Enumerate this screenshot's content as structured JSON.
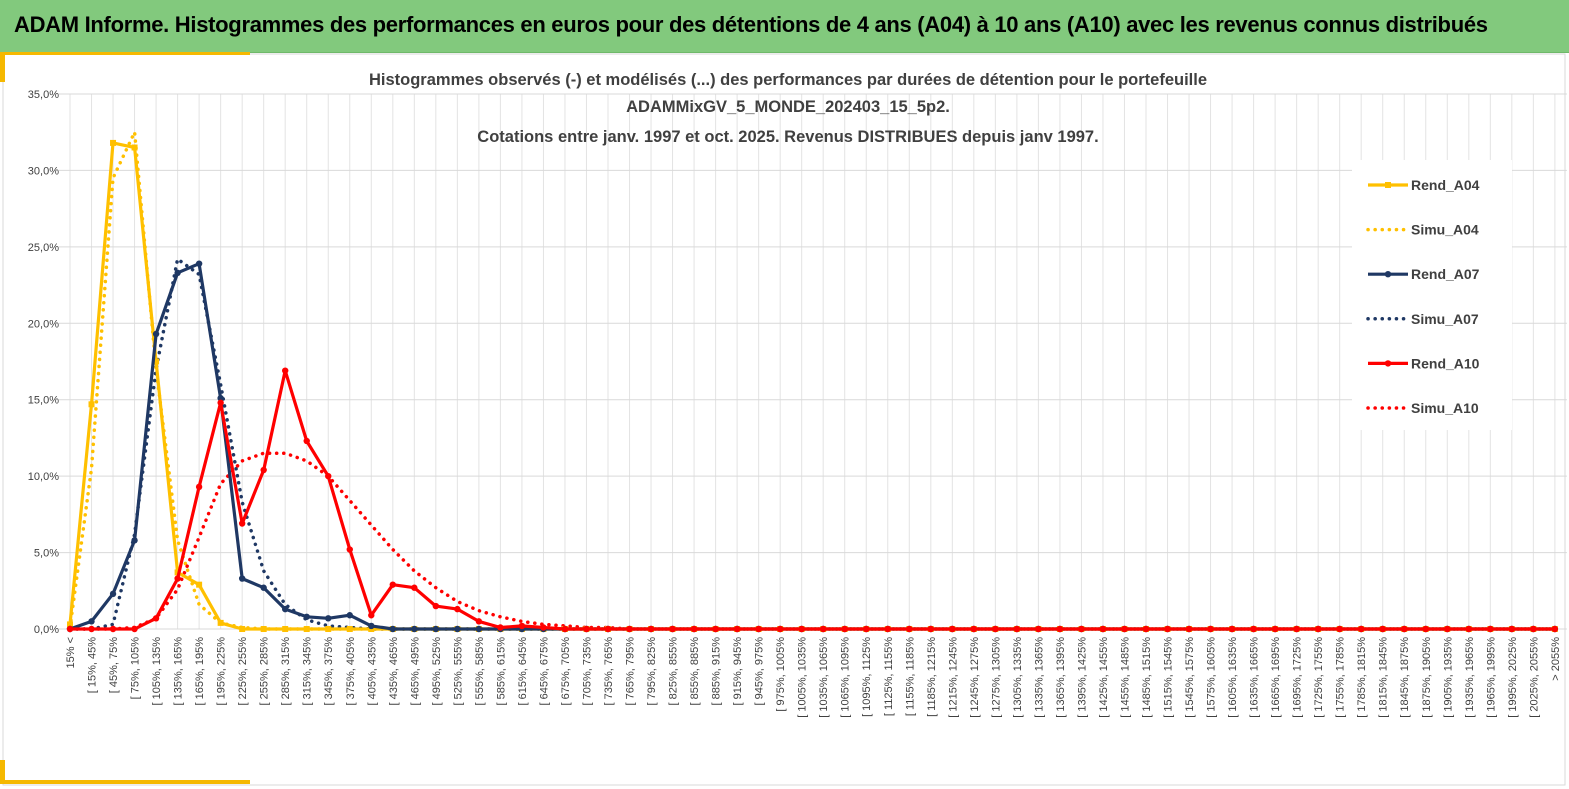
{
  "header": {
    "title": "ADAM Informe. Histogrammes des performances en euros pour des détentions de 4 ans (A04) à 10 ans (A10) avec les revenus connus distribués"
  },
  "colors": {
    "header_bg": "#82c97d",
    "accent_gold": "#f5b800",
    "A04": "#ffc000",
    "A07": "#1f3864",
    "A10": "#ff0000",
    "grid": "#d9d9d9"
  },
  "chart_data": {
    "type": "line",
    "title_lines": [
      "Histogrammes observés (-) et modélisés (...) des performances par durées de détention pour le portefeuille",
      "ADAMMixGV_5_MONDE_202403_15_5p2.",
      "Cotations entre janv. 1997 et oct. 2025. Revenus DISTRIBUES depuis janv 1997."
    ],
    "xlabel": "",
    "ylabel": "",
    "ylim": [
      0,
      35
    ],
    "yticks": [
      "0,0%",
      "5,0%",
      "10,0%",
      "15,0%",
      "20,0%",
      "25,0%",
      "30,0%",
      "35,0%"
    ],
    "grid": true,
    "legend_position": "right",
    "categories": [
      "15% <",
      "[ 15%, 45%",
      "[ 45%, 75%",
      "[ 75%, 105%",
      "[ 105%, 135%",
      "[ 135%, 165%",
      "[ 165%, 195%",
      "[ 195%, 225%",
      "[ 225%, 255%",
      "[ 255%, 285%",
      "[ 285%, 315%",
      "[ 315%, 345%",
      "[ 345%, 375%",
      "[ 375%, 405%",
      "[ 405%, 435%",
      "[ 435%, 465%",
      "[ 465%, 495%",
      "[ 495%, 525%",
      "[ 525%, 555%",
      "[ 555%, 585%",
      "[ 585%, 615%",
      "[ 615%, 645%",
      "[ 645%, 675%",
      "[ 675%, 705%",
      "[ 705%, 735%",
      "[ 735%, 765%",
      "[ 765%, 795%",
      "[ 795%, 825%",
      "[ 825%, 855%",
      "[ 855%, 885%",
      "[ 885%, 915%",
      "[ 915%, 945%",
      "[ 945%, 975%",
      "[ 975%, 1005%",
      "[ 1005%, 1035%",
      "[ 1035%, 1065%",
      "[ 1065%, 1095%",
      "[ 1095%, 1125%",
      "[ 1125%, 1155%",
      "[ 1155%, 1185%",
      "[ 1185%, 1215%",
      "[ 1215%, 1245%",
      "[ 1245%, 1275%",
      "[ 1275%, 1305%",
      "[ 1305%, 1335%",
      "[ 1335%, 1365%",
      "[ 1365%, 1395%",
      "[ 1395%, 1425%",
      "[ 1425%, 1455%",
      "[ 1455%, 1485%",
      "[ 1485%, 1515%",
      "[ 1515%, 1545%",
      "[ 1545%, 1575%",
      "[ 1575%, 1605%",
      "[ 1605%, 1635%",
      "[ 1635%, 1665%",
      "[ 1665%, 1695%",
      "[ 1695%, 1725%",
      "[ 1725%, 1755%",
      "[ 1755%, 1785%",
      "[ 1785%, 1815%",
      "[ 1815%, 1845%",
      "[ 1845%, 1875%",
      "[ 1875%, 1905%",
      "[ 1905%, 1935%",
      "[ 1935%, 1965%",
      "[ 1965%, 1995%",
      "[ 1995%, 2025%",
      "[ 2025%, 2055%",
      "> 2055%"
    ],
    "series": [
      {
        "name": "Rend_A04",
        "style": "solid",
        "color": "#ffc000",
        "values": [
          0.3,
          14.7,
          31.8,
          31.5,
          17.5,
          3.7,
          2.9,
          0.4,
          0,
          0,
          0,
          0,
          0,
          0,
          0,
          0,
          0,
          0,
          0,
          0,
          0,
          0,
          0,
          0,
          0,
          0,
          0,
          0,
          0,
          0,
          0,
          0,
          0,
          0,
          0,
          0,
          0,
          0,
          0,
          0,
          0,
          0,
          0,
          0,
          0,
          0,
          0,
          0,
          0,
          0,
          0,
          0,
          0,
          0,
          0,
          0,
          0,
          0,
          0,
          0,
          0,
          0,
          0,
          0,
          0,
          0,
          0,
          0,
          0,
          0
        ]
      },
      {
        "name": "Simu_A04",
        "style": "dotted",
        "color": "#ffc000",
        "values": [
          0.1,
          10.5,
          29.5,
          32.5,
          17.0,
          5.8,
          1.6,
          0.4,
          0.1,
          0,
          0,
          0,
          0,
          0,
          0,
          0,
          0,
          0,
          0,
          0,
          0,
          0,
          0,
          0,
          0,
          0,
          0,
          0,
          0,
          0,
          0,
          0,
          0,
          0,
          0,
          0,
          0,
          0,
          0,
          0,
          0,
          0,
          0,
          0,
          0,
          0,
          0,
          0,
          0,
          0,
          0,
          0,
          0,
          0,
          0,
          0,
          0,
          0,
          0,
          0,
          0,
          0,
          0,
          0,
          0,
          0,
          0,
          0,
          0,
          0
        ]
      },
      {
        "name": "Rend_A07",
        "style": "solid",
        "color": "#1f3864",
        "values": [
          0,
          0.5,
          2.3,
          5.8,
          19.3,
          23.3,
          23.9,
          15.1,
          3.3,
          2.7,
          1.3,
          0.8,
          0.7,
          0.9,
          0.2,
          0,
          0,
          0,
          0,
          0,
          0,
          0,
          0,
          0,
          0,
          0,
          0,
          0,
          0,
          0,
          0,
          0,
          0,
          0,
          0,
          0,
          0,
          0,
          0,
          0,
          0,
          0,
          0,
          0,
          0,
          0,
          0,
          0,
          0,
          0,
          0,
          0,
          0,
          0,
          0,
          0,
          0,
          0,
          0,
          0,
          0,
          0,
          0,
          0,
          0,
          0,
          0,
          0,
          0,
          0
        ]
      },
      {
        "name": "Simu_A07",
        "style": "dotted",
        "color": "#1f3864",
        "values": [
          0,
          0,
          0.3,
          6.2,
          17.0,
          24.2,
          23.2,
          16.0,
          8.3,
          3.8,
          1.6,
          0.6,
          0.2,
          0.1,
          0,
          0,
          0,
          0,
          0,
          0,
          0,
          0,
          0,
          0,
          0,
          0,
          0,
          0,
          0,
          0,
          0,
          0,
          0,
          0,
          0,
          0,
          0,
          0,
          0,
          0,
          0,
          0,
          0,
          0,
          0,
          0,
          0,
          0,
          0,
          0,
          0,
          0,
          0,
          0,
          0,
          0,
          0,
          0,
          0,
          0,
          0,
          0,
          0,
          0,
          0,
          0,
          0,
          0,
          0,
          0
        ]
      },
      {
        "name": "Rend_A10",
        "style": "solid",
        "color": "#ff0000",
        "values": [
          0,
          0,
          0,
          0,
          0.7,
          3.3,
          9.3,
          14.8,
          6.9,
          10.4,
          16.9,
          12.3,
          10.0,
          5.2,
          0.9,
          2.9,
          2.7,
          1.5,
          1.3,
          0.5,
          0.1,
          0.2,
          0.1,
          0,
          0,
          0,
          0,
          0,
          0,
          0,
          0,
          0,
          0,
          0,
          0,
          0,
          0,
          0,
          0,
          0,
          0,
          0,
          0,
          0,
          0,
          0,
          0,
          0,
          0,
          0,
          0,
          0,
          0,
          0,
          0,
          0,
          0,
          0,
          0,
          0,
          0,
          0,
          0,
          0,
          0,
          0,
          0,
          0,
          0,
          0
        ]
      },
      {
        "name": "Simu_A10",
        "style": "dotted",
        "color": "#ff0000",
        "values": [
          0,
          0,
          0,
          0.1,
          0.7,
          2.6,
          6.0,
          9.5,
          11.0,
          11.5,
          11.5,
          11.0,
          10.0,
          8.4,
          6.8,
          5.2,
          3.8,
          2.7,
          1.8,
          1.2,
          0.8,
          0.5,
          0.3,
          0.2,
          0.1,
          0.1,
          0,
          0,
          0,
          0,
          0,
          0,
          0,
          0,
          0,
          0,
          0,
          0,
          0,
          0,
          0,
          0,
          0,
          0,
          0,
          0,
          0,
          0,
          0,
          0,
          0,
          0,
          0,
          0,
          0,
          0,
          0,
          0,
          0,
          0,
          0,
          0,
          0,
          0,
          0,
          0,
          0,
          0,
          0,
          0
        ]
      }
    ]
  }
}
